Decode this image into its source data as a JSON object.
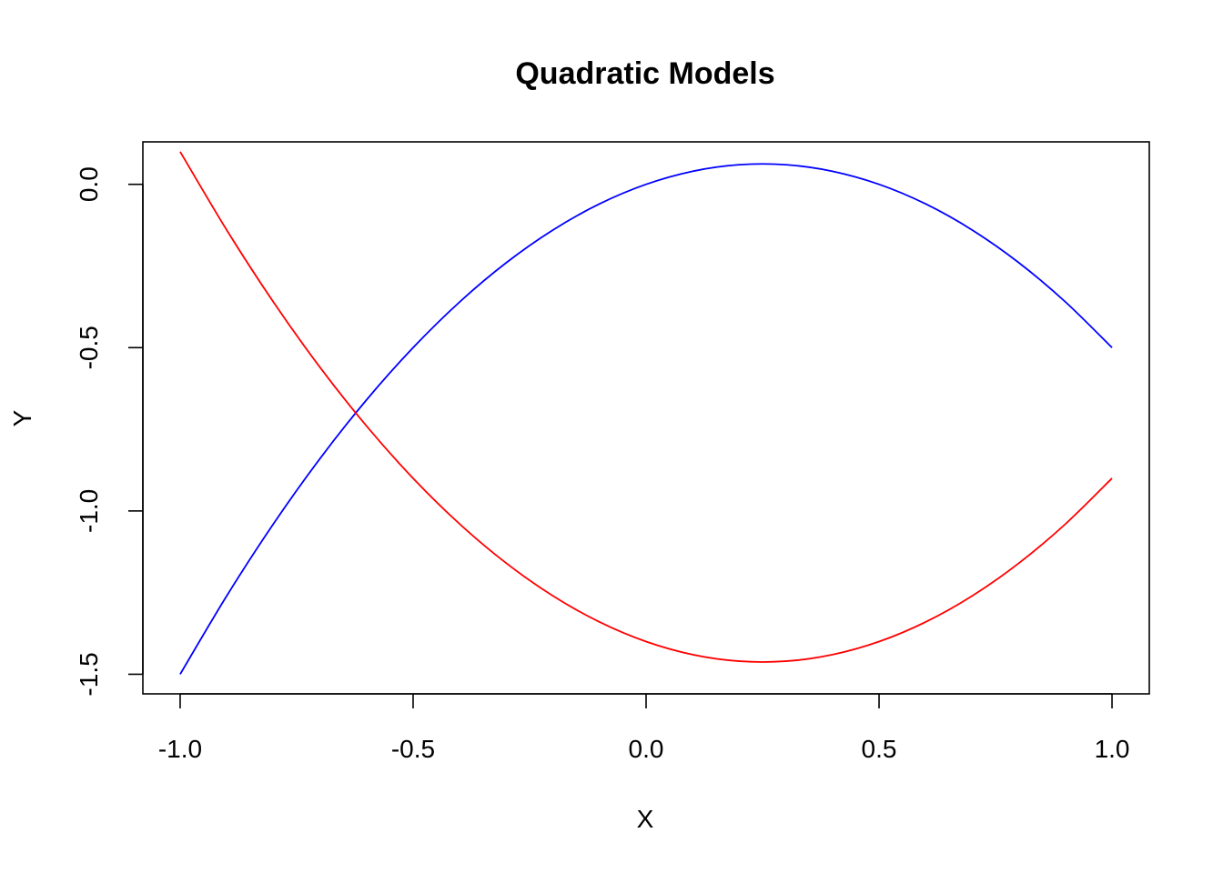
{
  "chart_data": {
    "type": "line",
    "title": "Quadratic Models",
    "xlabel": "X",
    "ylabel": "Y",
    "xlim": [
      -1.08,
      1.08
    ],
    "ylim": [
      -1.56,
      0.13
    ],
    "x_ticks": [
      -1.0,
      -0.5,
      0.0,
      0.5,
      1.0
    ],
    "x_tick_labels": [
      "-1.0",
      "-0.5",
      "0.0",
      "0.5",
      "1.0"
    ],
    "y_ticks": [
      -1.5,
      -1.0,
      -0.5,
      0.0
    ],
    "y_tick_labels": [
      "-1.5",
      "-1.0",
      "-0.5",
      "0.0"
    ],
    "grid": false,
    "legend": "none",
    "series": [
      {
        "color": "#0000ff",
        "x": [
          -1.0,
          -0.9,
          -0.8,
          -0.7,
          -0.6,
          -0.5,
          -0.4,
          -0.3,
          -0.2,
          -0.1,
          0.0,
          0.1,
          0.2,
          0.3,
          0.4,
          0.5,
          0.6,
          0.7,
          0.8,
          0.9,
          1.0
        ],
        "y": [
          -1.5,
          -1.26,
          -1.04,
          -0.84,
          -0.66,
          -0.5,
          -0.36,
          -0.24,
          -0.14,
          -0.06,
          0.0,
          0.04,
          0.06,
          0.06,
          0.04,
          0.0,
          -0.06,
          -0.14,
          -0.24,
          -0.36,
          -0.5
        ]
      },
      {
        "color": "#ff0000",
        "x": [
          -1.0,
          -0.9,
          -0.8,
          -0.7,
          -0.6,
          -0.5,
          -0.4,
          -0.3,
          -0.2,
          -0.1,
          0.0,
          0.1,
          0.2,
          0.3,
          0.4,
          0.5,
          0.6,
          0.7,
          0.8,
          0.9,
          1.0
        ],
        "y": [
          0.1,
          -0.14,
          -0.36,
          -0.56,
          -0.74,
          -0.9,
          -1.04,
          -1.16,
          -1.26,
          -1.34,
          -1.4,
          -1.44,
          -1.46,
          -1.46,
          -1.44,
          -1.4,
          -1.34,
          -1.26,
          -1.16,
          -1.04,
          -0.9
        ]
      }
    ]
  }
}
